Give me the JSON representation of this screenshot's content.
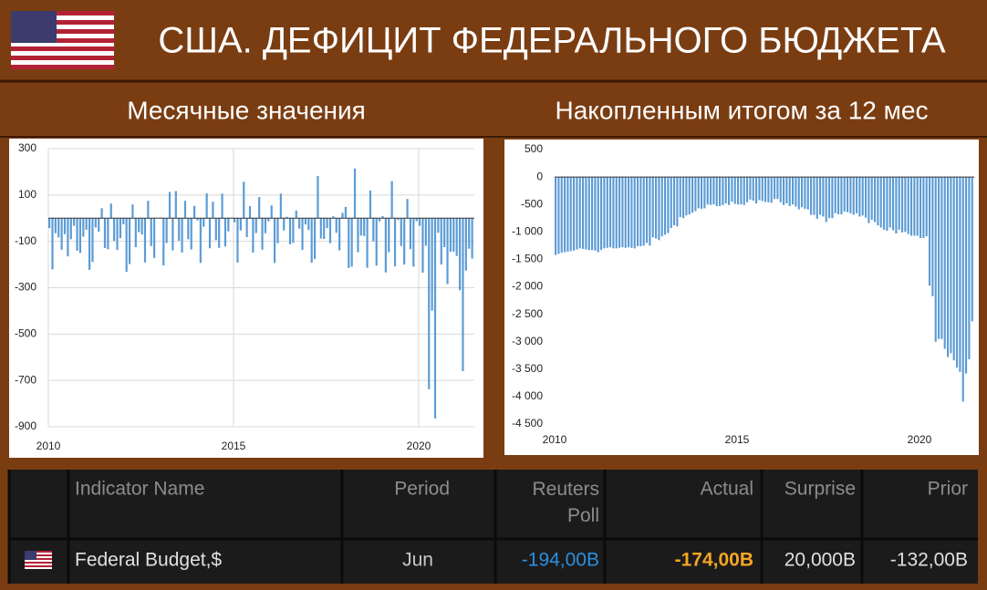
{
  "header": {
    "title": "США. ДЕФИЦИТ ФЕДЕРАЛЬНОГО БЮДЖЕТА"
  },
  "chart_data": [
    {
      "type": "bar",
      "title": "Месячные значения",
      "color": "#5b9bd5",
      "grid": true,
      "categories": [
        "2010",
        null,
        null,
        null,
        null,
        null,
        null,
        null,
        null,
        null,
        null,
        null,
        null,
        null,
        null,
        null,
        null,
        null,
        null,
        null,
        null,
        null,
        null,
        null,
        null,
        null,
        null,
        null,
        null,
        null,
        null,
        null,
        null,
        null,
        null,
        null,
        null,
        null,
        null,
        null,
        null,
        null,
        null,
        null,
        null,
        null,
        null,
        null,
        null,
        null,
        null,
        null,
        null,
        null,
        null,
        null,
        null,
        null,
        null,
        null,
        "2015",
        null,
        null,
        null,
        null,
        null,
        null,
        null,
        null,
        null,
        null,
        null,
        null,
        null,
        null,
        null,
        null,
        null,
        null,
        null,
        null,
        null,
        null,
        null,
        null,
        null,
        null,
        null,
        null,
        null,
        null,
        null,
        null,
        null,
        null,
        null,
        null,
        null,
        null,
        null,
        null,
        null,
        null,
        null,
        null,
        null,
        null,
        null,
        null,
        null,
        null,
        null,
        null,
        null,
        null,
        null,
        null,
        null,
        null,
        null,
        "2020",
        null,
        null,
        null,
        null,
        null,
        null,
        null,
        null,
        null,
        null,
        null,
        null,
        null,
        null,
        null,
        null,
        null
      ],
      "values": [
        -43,
        -221,
        -65,
        -83,
        -136,
        -69,
        -165,
        -91,
        -33,
        -140,
        -150,
        -80,
        -50,
        -223,
        -189,
        -40,
        -58,
        43,
        -129,
        -134,
        63,
        -98,
        -137,
        -86,
        -27,
        -232,
        -198,
        59,
        -125,
        -60,
        -70,
        -191,
        75,
        -120,
        -172,
        -1,
        3,
        -204,
        -107,
        113,
        -139,
        117,
        -98,
        -148,
        75,
        -91,
        -135,
        53,
        -10,
        -193,
        -37,
        107,
        -130,
        71,
        -95,
        -128,
        106,
        -122,
        -57,
        2,
        -18,
        -192,
        -53,
        157,
        -82,
        52,
        -149,
        -64,
        91,
        -136,
        -65,
        -14,
        55,
        -193,
        -108,
        106,
        -53,
        6,
        -113,
        -107,
        33,
        -45,
        -137,
        -27,
        -51,
        -192,
        -176,
        182,
        -88,
        -90,
        -43,
        -108,
        8,
        -63,
        -139,
        23,
        49,
        -215,
        -209,
        214,
        -147,
        -75,
        -77,
        -214,
        119,
        -100,
        -205,
        -14,
        9,
        -234,
        -147,
        160,
        -208,
        -8,
        -120,
        -200,
        83,
        -134,
        -209,
        -13,
        -33,
        -235,
        -119,
        -738,
        -399,
        -864,
        -63,
        -200,
        -125,
        -284,
        -145,
        -144,
        -163,
        -311,
        -660,
        -226,
        -132,
        -174
      ],
      "ylim": [
        -900,
        300
      ],
      "yticks": [
        -900,
        -700,
        -500,
        -300,
        -100,
        100,
        300
      ]
    },
    {
      "type": "bar",
      "title": "Накопленным итогом за 12 мес",
      "color": "#5b9bd5",
      "grid": false,
      "categories": [
        "2010",
        null,
        null,
        null,
        null,
        null,
        null,
        null,
        null,
        null,
        null,
        null,
        null,
        null,
        null,
        null,
        null,
        null,
        null,
        null,
        null,
        null,
        null,
        null,
        null,
        null,
        null,
        null,
        null,
        null,
        null,
        null,
        null,
        null,
        null,
        null,
        null,
        null,
        null,
        null,
        null,
        null,
        null,
        null,
        null,
        null,
        null,
        null,
        null,
        null,
        null,
        null,
        null,
        null,
        null,
        null,
        null,
        null,
        null,
        null,
        "2015",
        null,
        null,
        null,
        null,
        null,
        null,
        null,
        null,
        null,
        null,
        null,
        null,
        null,
        null,
        null,
        null,
        null,
        null,
        null,
        null,
        null,
        null,
        null,
        null,
        null,
        null,
        null,
        null,
        null,
        null,
        null,
        null,
        null,
        null,
        null,
        null,
        null,
        null,
        null,
        null,
        null,
        null,
        null,
        null,
        null,
        null,
        null,
        null,
        null,
        null,
        null,
        null,
        null,
        null,
        null,
        null,
        null,
        null,
        null,
        "2020",
        null,
        null,
        null,
        null,
        null,
        null,
        null,
        null,
        null,
        null,
        null,
        null,
        null,
        null,
        null,
        null,
        null
      ],
      "values": [
        -1420,
        -1400,
        -1380,
        -1370,
        -1360,
        -1350,
        -1340,
        -1320,
        -1300,
        -1310,
        -1320,
        -1330,
        -1330,
        -1340,
        -1370,
        -1330,
        -1300,
        -1290,
        -1280,
        -1300,
        -1300,
        -1290,
        -1280,
        -1290,
        -1280,
        -1290,
        -1300,
        -1260,
        -1260,
        -1250,
        -1200,
        -1250,
        -1100,
        -1120,
        -1150,
        -1080,
        -1050,
        -1020,
        -930,
        -880,
        -900,
        -730,
        -750,
        -700,
        -680,
        -650,
        -620,
        -570,
        -580,
        -570,
        -500,
        -510,
        -500,
        -530,
        -530,
        -510,
        -480,
        -510,
        -450,
        -490,
        -500,
        -500,
        -510,
        -460,
        -410,
        -430,
        -480,
        -420,
        -440,
        -455,
        -460,
        -470,
        -400,
        -400,
        -460,
        -510,
        -480,
        -530,
        -500,
        -540,
        -590,
        -550,
        -580,
        -590,
        -690,
        -690,
        -760,
        -690,
        -720,
        -820,
        -750,
        -750,
        -660,
        -680,
        -680,
        -630,
        -640,
        -660,
        -690,
        -660,
        -720,
        -700,
        -740,
        -840,
        -780,
        -820,
        -880,
        -920,
        -960,
        -980,
        -920,
        -970,
        -1030,
        -960,
        -1010,
        -1000,
        -1040,
        -1070,
        -1070,
        -1070,
        -1110,
        -1110,
        -1080,
        -1980,
        -2170,
        -3000,
        -2950,
        -2950,
        -3130,
        -3280,
        -3210,
        -3340,
        -3470,
        -3550,
        -4090,
        -3580,
        -3320,
        -2630
      ],
      "ylim": [
        -4500,
        500
      ],
      "yticks": [
        {
          "value": -4500,
          "label": "-4 500"
        },
        {
          "value": -4000,
          "label": "-4 000"
        },
        {
          "value": -3500,
          "label": "-3 500"
        },
        {
          "value": -3000,
          "label": "-3 000"
        },
        {
          "value": -2500,
          "label": "-2 500"
        },
        {
          "value": -2000,
          "label": "-2 000"
        },
        {
          "value": -1500,
          "label": "-1 500"
        },
        {
          "value": -1000,
          "label": "-1 000"
        },
        -500,
        0,
        500
      ]
    }
  ],
  "table": {
    "columns": [
      "Indicator Name",
      "Period",
      "Reuters Poll",
      "Actual",
      "Surprise",
      "Prior"
    ],
    "rows": [
      [
        "Federal Budget,$",
        "Jun",
        "-194,00B",
        "-174,00B",
        "20,000B",
        "-132,00B"
      ]
    ]
  }
}
